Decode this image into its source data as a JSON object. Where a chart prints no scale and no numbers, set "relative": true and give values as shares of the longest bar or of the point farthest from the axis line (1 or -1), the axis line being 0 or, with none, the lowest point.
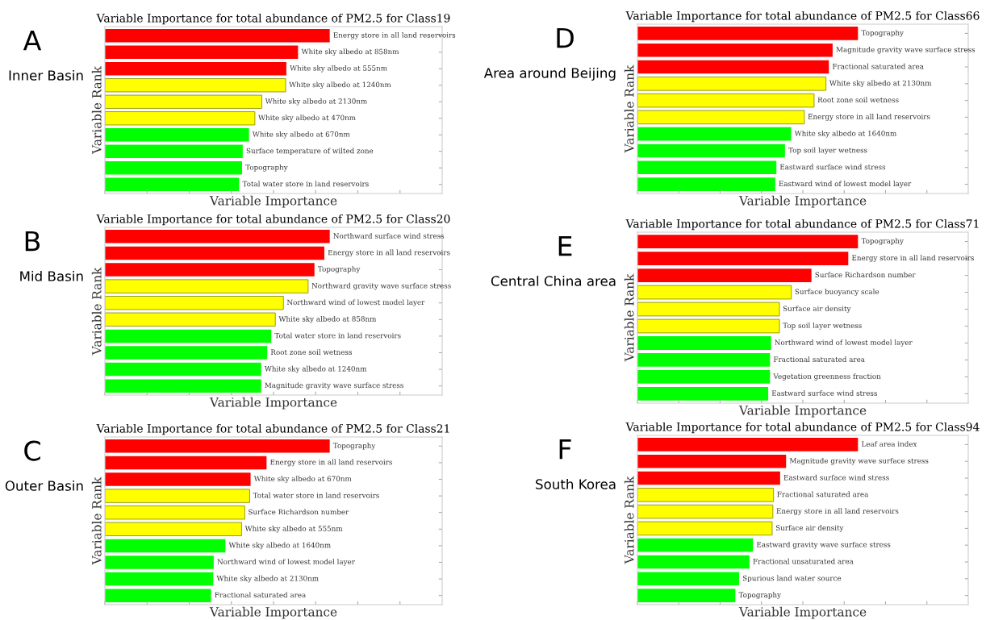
{
  "chart_data": [
    {
      "type": "bar",
      "orientation": "horizontal",
      "relative": true,
      "tick_labels": false,
      "title": "Variable Importance for total abundance of PM2.5 for Class19",
      "xlabel": "Variable Importance",
      "ylabel": "Variable Rank",
      "annotations": [
        "A",
        "Inner Basin"
      ],
      "categories": [
        "Energy store in all land reservoirs",
        "White sky albedo at 858nm",
        "White sky albedo at 555nm",
        "White sky albedo at 1240nm",
        "White sky albedo at 2130nm",
        "White sky albedo at 470nm",
        "White sky albedo at 670nm",
        "Surface temperature of wilted zone",
        "Topography",
        "Total water store in land reservoirs"
      ],
      "values": [
        1,
        0.859,
        0.807,
        0.804,
        0.698,
        0.667,
        0.641,
        0.613,
        0.61,
        0.597
      ],
      "colors": [
        "#ff0000",
        "#ff0000",
        "#ff0000",
        "#ffff00",
        "#ffff00",
        "#ffff00",
        "#00ff00",
        "#00ff00",
        "#00ff00",
        "#00ff00"
      ]
    },
    {
      "type": "bar",
      "orientation": "horizontal",
      "relative": true,
      "tick_labels": false,
      "title": "Variable Importance for total abundance of PM2.5 for Class20",
      "xlabel": "Variable Importance",
      "ylabel": "Variable Rank",
      "annotations": [
        "B",
        "Mid Basin"
      ],
      "categories": [
        "Northward surface wind stress",
        "Energy store in all land reservoirs",
        "Topography",
        "Northward gravity wave surface stress",
        "Northward wind of lowest model layer",
        "White sky albedo at 858nm",
        "Total water store in land reservoirs",
        "Root zone soil wetness",
        "White sky albedo at 1240nm",
        "Magnitude gravity wave surface stress"
      ],
      "values": [
        1,
        0.976,
        0.932,
        0.904,
        0.794,
        0.758,
        0.74,
        0.722,
        0.695,
        0.695
      ],
      "colors": [
        "#ff0000",
        "#ff0000",
        "#ff0000",
        "#ffff00",
        "#ffff00",
        "#ffff00",
        "#00ff00",
        "#00ff00",
        "#00ff00",
        "#00ff00"
      ]
    },
    {
      "type": "bar",
      "orientation": "horizontal",
      "relative": true,
      "tick_labels": false,
      "title": "Variable Importance for total abundance of PM2.5 for Class21",
      "xlabel": "Variable Importance",
      "ylabel": "Variable Rank",
      "annotations": [
        "C",
        "Outer Basin"
      ],
      "categories": [
        "Topography",
        "Energy store in all land reservoirs",
        "White sky albedo at 670nm",
        "Total water store in land reservoirs",
        "Surface Richardson number",
        "White sky albedo at 555nm",
        "White sky albedo at 1640nm",
        "Northward wind of lowest model layer",
        "White sky albedo at 2130nm",
        "Fractional saturated area"
      ],
      "values": [
        1,
        0.719,
        0.648,
        0.644,
        0.622,
        0.608,
        0.536,
        0.484,
        0.482,
        0.472
      ],
      "colors": [
        "#ff0000",
        "#ff0000",
        "#ff0000",
        "#ffff00",
        "#ffff00",
        "#ffff00",
        "#00ff00",
        "#00ff00",
        "#00ff00",
        "#00ff00"
      ]
    },
    {
      "type": "bar",
      "orientation": "horizontal",
      "relative": true,
      "tick_labels": false,
      "title": "Variable Importance for total abundance of PM2.5 for Class66",
      "xlabel": "Variable Importance",
      "ylabel": "Variable Rank",
      "annotations": [
        "D",
        "Area around Beijing"
      ],
      "categories": [
        "Topography",
        "Magnitude gravity wave surface stress",
        "Fractional saturated area",
        "White sky albedo at 2130nm",
        "Root zone soil wetness",
        "Energy store in all land reservoirs",
        "White sky albedo at 1640nm",
        "Top soil layer wetness",
        "Eastward surface wind stress",
        "Eastward wind of lowest model layer"
      ],
      "values": [
        1,
        0.885,
        0.868,
        0.855,
        0.801,
        0.757,
        0.697,
        0.669,
        0.63,
        0.625
      ],
      "colors": [
        "#ff0000",
        "#ff0000",
        "#ff0000",
        "#ffff00",
        "#ffff00",
        "#ffff00",
        "#00ff00",
        "#00ff00",
        "#00ff00",
        "#00ff00"
      ]
    },
    {
      "type": "bar",
      "orientation": "horizontal",
      "relative": true,
      "tick_labels": false,
      "title": "Variable Importance for total abundance of PM2.5 for Class71",
      "xlabel": "Variable Importance",
      "ylabel": "Variable Rank",
      "annotations": [
        "E",
        "Central China area"
      ],
      "categories": [
        "Topography",
        "Energy store in all land reservoirs",
        "Surface Richardson number",
        "Surface buoyancy scale",
        "Surface air density",
        "Top soil layer wetness",
        "Northward wind of lowest model layer",
        "Fractional saturated area",
        "Vegetation greenness fraction",
        "Eastward surface wind stress"
      ],
      "values": [
        1,
        0.956,
        0.789,
        0.698,
        0.644,
        0.644,
        0.606,
        0.601,
        0.601,
        0.593
      ],
      "colors": [
        "#ff0000",
        "#ff0000",
        "#ff0000",
        "#ffff00",
        "#ffff00",
        "#ffff00",
        "#00ff00",
        "#00ff00",
        "#00ff00",
        "#00ff00"
      ]
    },
    {
      "type": "bar",
      "orientation": "horizontal",
      "relative": true,
      "tick_labels": false,
      "title": "Variable Importance for total abundance of PM2.5 for Class94",
      "xlabel": "Variable Importance",
      "ylabel": "Variable Rank",
      "annotations": [
        "F",
        "South Korea"
      ],
      "categories": [
        "Leaf area index",
        "Magnitude gravity wave surface stress",
        "Eastward surface wind stress",
        "Fractional saturated area",
        "Energy store in all land reservoirs",
        "Surface air density",
        "Eastward gravity wave surface stress",
        "Fractional unsaturated area",
        "Spurious land water source",
        "Topography"
      ],
      "values": [
        1,
        0.674,
        0.647,
        0.617,
        0.614,
        0.611,
        0.524,
        0.508,
        0.461,
        0.444
      ],
      "colors": [
        "#ff0000",
        "#ff0000",
        "#ff0000",
        "#ffff00",
        "#ffff00",
        "#ffff00",
        "#00ff00",
        "#00ff00",
        "#00ff00",
        "#00ff00"
      ]
    }
  ]
}
